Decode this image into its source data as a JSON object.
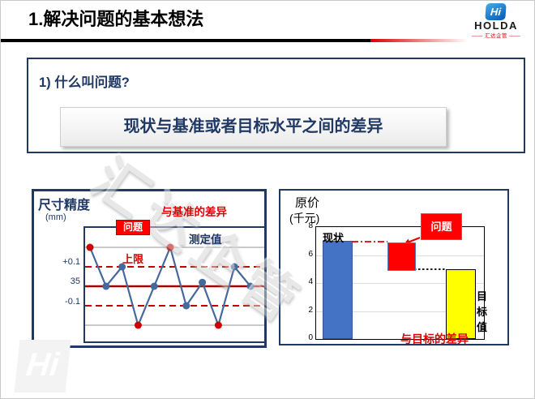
{
  "header": {
    "title": "1.解决问题的基本想法"
  },
  "logo": {
    "glyph": "Hi",
    "name": "HOLDA",
    "subtitle": "—— 汇达企管 ——"
  },
  "question": {
    "label": "1) 什么叫问题?",
    "statement": "现状与基准或者目标水平之间的差异"
  },
  "watermark": {
    "center_text": "汇达企管",
    "corner_glyph": "Hi"
  },
  "run_chart": {
    "title": "尺寸精度",
    "unit": "(mm)",
    "deviation_label": "与基准的差异",
    "problem_label": "问题",
    "series_label": "测定值",
    "upper_limit_label": "上限",
    "axis_labels": {
      "upper": "+0.1",
      "center": "35",
      "lower": "-0.1"
    }
  },
  "bar_chart": {
    "ylabel_line1": "原价",
    "ylabel_line2": "(千元)",
    "problem_label": "问题",
    "current_label": "现状",
    "target_label": "目标值",
    "gap_label": "与目标的差异"
  },
  "chart_data": [
    {
      "type": "line",
      "title": "尺寸精度 (mm) — 测定值",
      "x": [
        1,
        2,
        3,
        4,
        5,
        6,
        7,
        8,
        9,
        10,
        11
      ],
      "values_deviation_mm": [
        0.2,
        0,
        0.1,
        -0.2,
        0,
        0.2,
        -0.1,
        0.02,
        -0.2,
        0.1,
        0
      ],
      "center_value_label": "35",
      "upper_limit_label": "+0.1",
      "lower_limit_label": "-0.1",
      "out_of_limit_point_indices": [
        0,
        3,
        5,
        8
      ],
      "line_color": "#44699D",
      "point_color": "#44699D",
      "out_of_limit_color": "#CC0000",
      "limit_line_color": "#C00000",
      "center_line_color": "#A50000",
      "ref_line_color": "#ABABAB",
      "ref_levels_mm": [
        0.2,
        -0.2
      ]
    },
    {
      "type": "bar",
      "categories": [
        "现状",
        "目标值"
      ],
      "values": [
        7,
        5
      ],
      "bar_colors": [
        "#4472C4",
        "#FFFF00"
      ],
      "bar_border_colors": [
        "#2F5597",
        "#000000"
      ],
      "ylabel": "原价 (千元)",
      "ylim": [
        0,
        8
      ],
      "yticks": [
        0,
        2,
        4,
        6,
        8
      ],
      "grid": true,
      "annotations": [
        "问题",
        "与目标的差异"
      ]
    }
  ]
}
